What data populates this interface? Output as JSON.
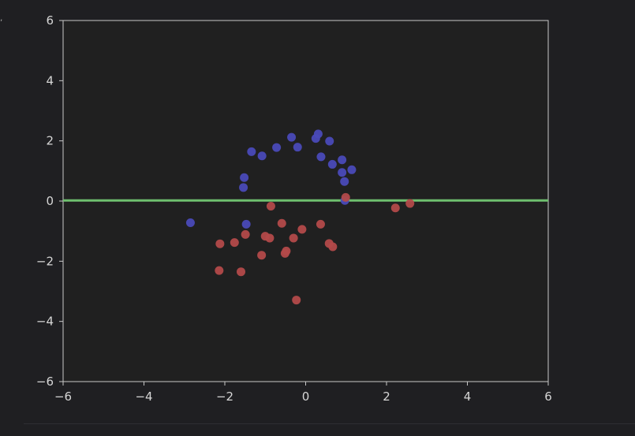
{
  "chart_data": {
    "type": "scatter",
    "title": "",
    "xlabel": "",
    "ylabel": "",
    "xlim": [
      -6,
      6
    ],
    "ylim": [
      -6,
      6
    ],
    "grid": false,
    "x_ticks": [
      -6,
      -4,
      -2,
      0,
      2,
      4,
      6
    ],
    "y_ticks": [
      -6,
      -4,
      -2,
      0,
      2,
      4,
      6
    ],
    "colors": {
      "background": "#1f1f22",
      "plot_area": "#202020",
      "axis": "#c8c8c8",
      "tick_label": "#d6d6d6",
      "blue_points": "#4a4ab8",
      "red_points": "#b34a4a",
      "line": "#6fbf6f"
    },
    "series": [
      {
        "color": "#4a4ab8",
        "points": [
          [
            -2.85,
            -0.72
          ],
          [
            -1.52,
            0.78
          ],
          [
            -1.54,
            0.45
          ],
          [
            -1.47,
            -0.77
          ],
          [
            -1.34,
            1.64
          ],
          [
            -1.08,
            1.5
          ],
          [
            -0.72,
            1.78
          ],
          [
            -0.35,
            2.12
          ],
          [
            -0.2,
            1.79
          ],
          [
            0.25,
            2.08
          ],
          [
            0.31,
            2.23
          ],
          [
            0.38,
            1.47
          ],
          [
            0.59,
            1.99
          ],
          [
            0.66,
            1.22
          ],
          [
            0.9,
            1.37
          ],
          [
            0.9,
            0.95
          ],
          [
            0.96,
            0.65
          ],
          [
            1.14,
            1.04
          ],
          [
            0.97,
            0.02
          ]
        ]
      },
      {
        "color": "#b34a4a",
        "points": [
          [
            -2.12,
            -1.42
          ],
          [
            -2.14,
            -2.31
          ],
          [
            -1.76,
            -1.38
          ],
          [
            -1.6,
            -2.35
          ],
          [
            -1.49,
            -1.11
          ],
          [
            -1.09,
            -1.8
          ],
          [
            -1.0,
            -1.17
          ],
          [
            -0.89,
            -1.23
          ],
          [
            -0.86,
            -0.17
          ],
          [
            -0.59,
            -0.74
          ],
          [
            -0.51,
            -1.74
          ],
          [
            -0.48,
            -1.66
          ],
          [
            -0.3,
            -1.23
          ],
          [
            -0.23,
            -3.29
          ],
          [
            -0.09,
            -0.94
          ],
          [
            0.37,
            -0.77
          ],
          [
            0.58,
            -1.41
          ],
          [
            0.67,
            -1.52
          ],
          [
            0.99,
            0.12
          ],
          [
            2.22,
            -0.23
          ],
          [
            2.58,
            -0.08
          ]
        ]
      }
    ],
    "lines": [
      {
        "color": "#6fbf6f",
        "x": [
          -6,
          6
        ],
        "y": [
          0.02,
          0.02
        ]
      }
    ]
  }
}
